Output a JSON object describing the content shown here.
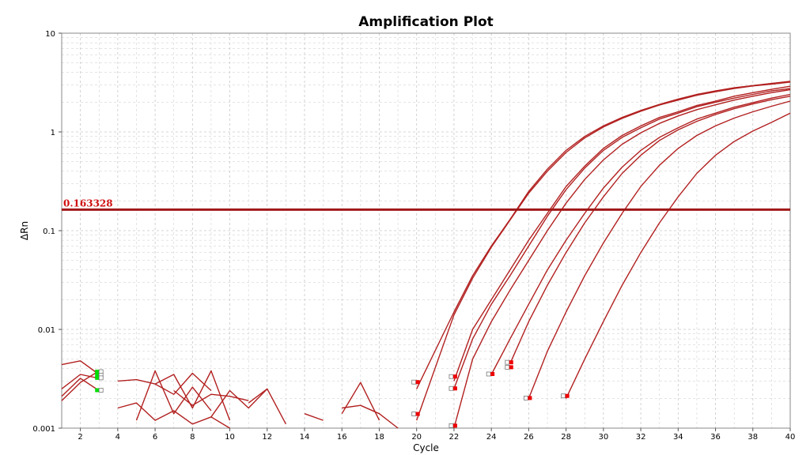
{
  "chart_data": {
    "type": "line",
    "title": "Amplification Plot",
    "xlabel": "Cycle",
    "ylabel": "ΔRn",
    "x_scale": "linear",
    "y_scale": "log",
    "xlim": [
      1,
      40
    ],
    "ylim": [
      0.001,
      10
    ],
    "x_ticks": [
      2,
      4,
      6,
      8,
      10,
      12,
      14,
      16,
      18,
      20,
      22,
      24,
      26,
      28,
      30,
      32,
      34,
      36,
      38,
      40
    ],
    "y_ticks": [
      0.001,
      0.01,
      0.1,
      1,
      10
    ],
    "y_tick_labels": [
      "0.001",
      "0.01",
      "0.1",
      "1",
      "10"
    ],
    "grid": true,
    "colors": {
      "curves": "#b22020",
      "threshold": "#a01818",
      "threshold_label": "#d01010",
      "grid": "#c8c8c8",
      "baseline_marker": "#00dd00",
      "ct_marker": "#ee0000"
    },
    "threshold": {
      "value": 0.163328,
      "label": "0.163328"
    },
    "series": [
      {
        "x": [
          20,
          22,
          23,
          24,
          25,
          26,
          27,
          28,
          29,
          30,
          31,
          32,
          33,
          34,
          35,
          36,
          37,
          38,
          39,
          40
        ],
        "y": [
          0.0025,
          0.015,
          0.035,
          0.07,
          0.13,
          0.25,
          0.42,
          0.65,
          0.9,
          1.15,
          1.4,
          1.65,
          1.9,
          2.15,
          2.4,
          2.6,
          2.8,
          2.95,
          3.1,
          3.25
        ]
      },
      {
        "x": [
          20,
          22,
          23,
          24,
          25,
          26,
          27,
          28,
          29,
          30,
          31,
          32,
          33,
          34,
          35,
          36,
          37,
          38,
          39,
          40
        ],
        "y": [
          0.0012,
          0.014,
          0.033,
          0.068,
          0.128,
          0.24,
          0.4,
          0.62,
          0.87,
          1.12,
          1.37,
          1.62,
          1.87,
          2.1,
          2.35,
          2.55,
          2.75,
          2.92,
          3.05,
          3.2
        ]
      },
      {
        "x": [
          22,
          23,
          24,
          25,
          26,
          27,
          28,
          29,
          30,
          31,
          32,
          33,
          34,
          35,
          36,
          37,
          38,
          39,
          40
        ],
        "y": [
          0.003,
          0.01,
          0.02,
          0.04,
          0.08,
          0.15,
          0.28,
          0.45,
          0.68,
          0.92,
          1.15,
          1.4,
          1.6,
          1.85,
          2.05,
          2.3,
          2.5,
          2.7,
          2.9
        ]
      },
      {
        "x": [
          22,
          23,
          24,
          25,
          26,
          27,
          28,
          29,
          30,
          31,
          32,
          33,
          34,
          35,
          36,
          37,
          38,
          39,
          40
        ],
        "y": [
          0.0025,
          0.008,
          0.018,
          0.035,
          0.07,
          0.14,
          0.26,
          0.43,
          0.65,
          0.88,
          1.1,
          1.35,
          1.55,
          1.8,
          2.0,
          2.2,
          2.4,
          2.6,
          2.75
        ]
      },
      {
        "x": [
          22,
          23,
          24,
          25,
          26,
          27,
          28,
          29,
          30,
          31,
          32,
          33,
          34,
          35,
          36,
          37,
          38,
          39,
          40
        ],
        "y": [
          0.001,
          0.005,
          0.012,
          0.025,
          0.05,
          0.1,
          0.19,
          0.33,
          0.52,
          0.75,
          0.98,
          1.22,
          1.45,
          1.68,
          1.88,
          2.1,
          2.3,
          2.5,
          2.68
        ]
      },
      {
        "x": [
          24,
          25,
          26,
          27,
          28,
          29,
          30,
          31,
          32,
          33,
          34,
          35,
          36,
          37,
          38,
          39,
          40
        ],
        "y": [
          0.0035,
          0.008,
          0.018,
          0.04,
          0.08,
          0.15,
          0.27,
          0.44,
          0.65,
          0.88,
          1.1,
          1.35,
          1.55,
          1.78,
          1.98,
          2.2,
          2.4
        ]
      },
      {
        "x": [
          25,
          26,
          27,
          28,
          29,
          30,
          31,
          32,
          33,
          34,
          35,
          36,
          37,
          38,
          39,
          40
        ],
        "y": [
          0.0045,
          0.012,
          0.028,
          0.06,
          0.12,
          0.22,
          0.38,
          0.58,
          0.82,
          1.05,
          1.28,
          1.5,
          1.72,
          1.92,
          2.12,
          2.3
        ]
      },
      {
        "x": [
          26,
          27,
          28,
          29,
          30,
          31,
          32,
          33,
          34,
          35,
          36,
          37,
          38,
          39,
          40
        ],
        "y": [
          0.002,
          0.006,
          0.015,
          0.035,
          0.075,
          0.15,
          0.28,
          0.46,
          0.68,
          0.92,
          1.15,
          1.38,
          1.6,
          1.82,
          2.05
        ]
      },
      {
        "x": [
          28,
          29,
          30,
          31,
          32,
          33,
          34,
          35,
          36,
          37,
          38,
          39,
          40
        ],
        "y": [
          0.002,
          0.005,
          0.012,
          0.028,
          0.06,
          0.12,
          0.22,
          0.38,
          0.58,
          0.8,
          1.02,
          1.25,
          1.55
        ]
      },
      {
        "x": [
          1,
          2,
          3
        ],
        "y": [
          0.0019,
          0.0029,
          0.0038
        ]
      },
      {
        "x": [
          1,
          2,
          3
        ],
        "y": [
          0.0025,
          0.0035,
          0.0032
        ]
      },
      {
        "x": [
          1,
          2,
          3
        ],
        "y": [
          0.0044,
          0.0048,
          0.0035
        ]
      },
      {
        "x": [
          1,
          2,
          3
        ],
        "y": [
          0.0021,
          0.0032,
          0.0024
        ]
      },
      {
        "x": [
          4,
          5,
          6,
          7,
          8,
          9,
          10
        ],
        "y": [
          0.0016,
          0.0018,
          0.0012,
          0.0015,
          0.0011,
          0.0013,
          0.001
        ]
      },
      {
        "x": [
          4,
          5,
          6,
          7,
          8,
          9
        ],
        "y": [
          0.003,
          0.0031,
          0.0028,
          0.0022,
          0.0036,
          0.0024
        ]
      },
      {
        "x": [
          5,
          6,
          7,
          8,
          9
        ],
        "y": [
          0.0012,
          0.0038,
          0.0014,
          0.0026,
          0.0015
        ]
      },
      {
        "x": [
          6,
          7,
          8,
          9,
          10
        ],
        "y": [
          0.0028,
          0.0035,
          0.0016,
          0.0038,
          0.0012
        ]
      },
      {
        "x": [
          7,
          8,
          9,
          10,
          11
        ],
        "y": [
          0.0024,
          0.0017,
          0.0022,
          0.0021,
          0.0019
        ]
      },
      {
        "x": [
          9,
          10,
          11,
          12,
          13
        ],
        "y": [
          0.0013,
          0.0024,
          0.0016,
          0.0025,
          0.0011
        ]
      },
      {
        "x": [
          11,
          12
        ],
        "y": [
          0.0018,
          0.0025
        ]
      },
      {
        "x": [
          14,
          15
        ],
        "y": [
          0.0014,
          0.0012
        ]
      },
      {
        "x": [
          16,
          17,
          18
        ],
        "y": [
          0.0014,
          0.0029,
          0.0012
        ]
      },
      {
        "x": [
          16,
          17,
          18,
          19
        ],
        "y": [
          0.0016,
          0.0017,
          0.0014,
          0.001
        ]
      }
    ],
    "baseline_markers": [
      {
        "x": 3,
        "y": 0.0037
      },
      {
        "x": 3,
        "y": 0.0034
      },
      {
        "x": 3,
        "y": 0.0032
      },
      {
        "x": 3,
        "y": 0.0024
      }
    ],
    "ct_markers": [
      {
        "x": 20,
        "y": 0.0029
      },
      {
        "x": 20,
        "y": 0.00138
      },
      {
        "x": 22,
        "y": 0.0033
      },
      {
        "x": 22,
        "y": 0.0025
      },
      {
        "x": 22,
        "y": 0.00105
      },
      {
        "x": 24,
        "y": 0.0035
      },
      {
        "x": 25,
        "y": 0.0046
      },
      {
        "x": 25,
        "y": 0.0041
      },
      {
        "x": 26,
        "y": 0.002
      },
      {
        "x": 28,
        "y": 0.0021
      }
    ]
  }
}
